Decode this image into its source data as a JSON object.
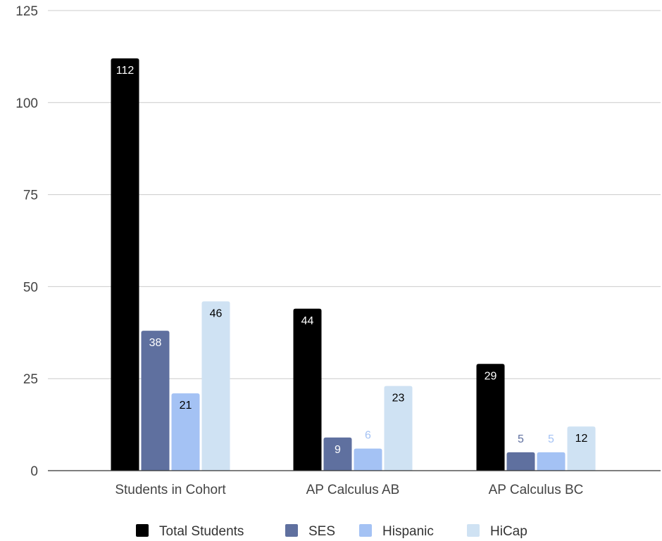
{
  "chart_data": {
    "type": "bar",
    "categories": [
      "Students in Cohort",
      "AP Calculus AB",
      "AP Calculus BC"
    ],
    "series": [
      {
        "name": "Total Students",
        "color": "#000000",
        "values": [
          112,
          44,
          29
        ]
      },
      {
        "name": "SES",
        "color": "#5f709f",
        "values": [
          38,
          9,
          5
        ]
      },
      {
        "name": "Hispanic",
        "color": "#a4c2f4",
        "values": [
          21,
          6,
          5
        ]
      },
      {
        "name": "HiCap",
        "color": "#cfe2f3",
        "values": [
          46,
          23,
          12
        ]
      }
    ],
    "yticks": [
      0,
      25,
      50,
      75,
      100,
      125
    ],
    "ylim": [
      0,
      125
    ],
    "grid": true,
    "legend_position": "bottom"
  }
}
